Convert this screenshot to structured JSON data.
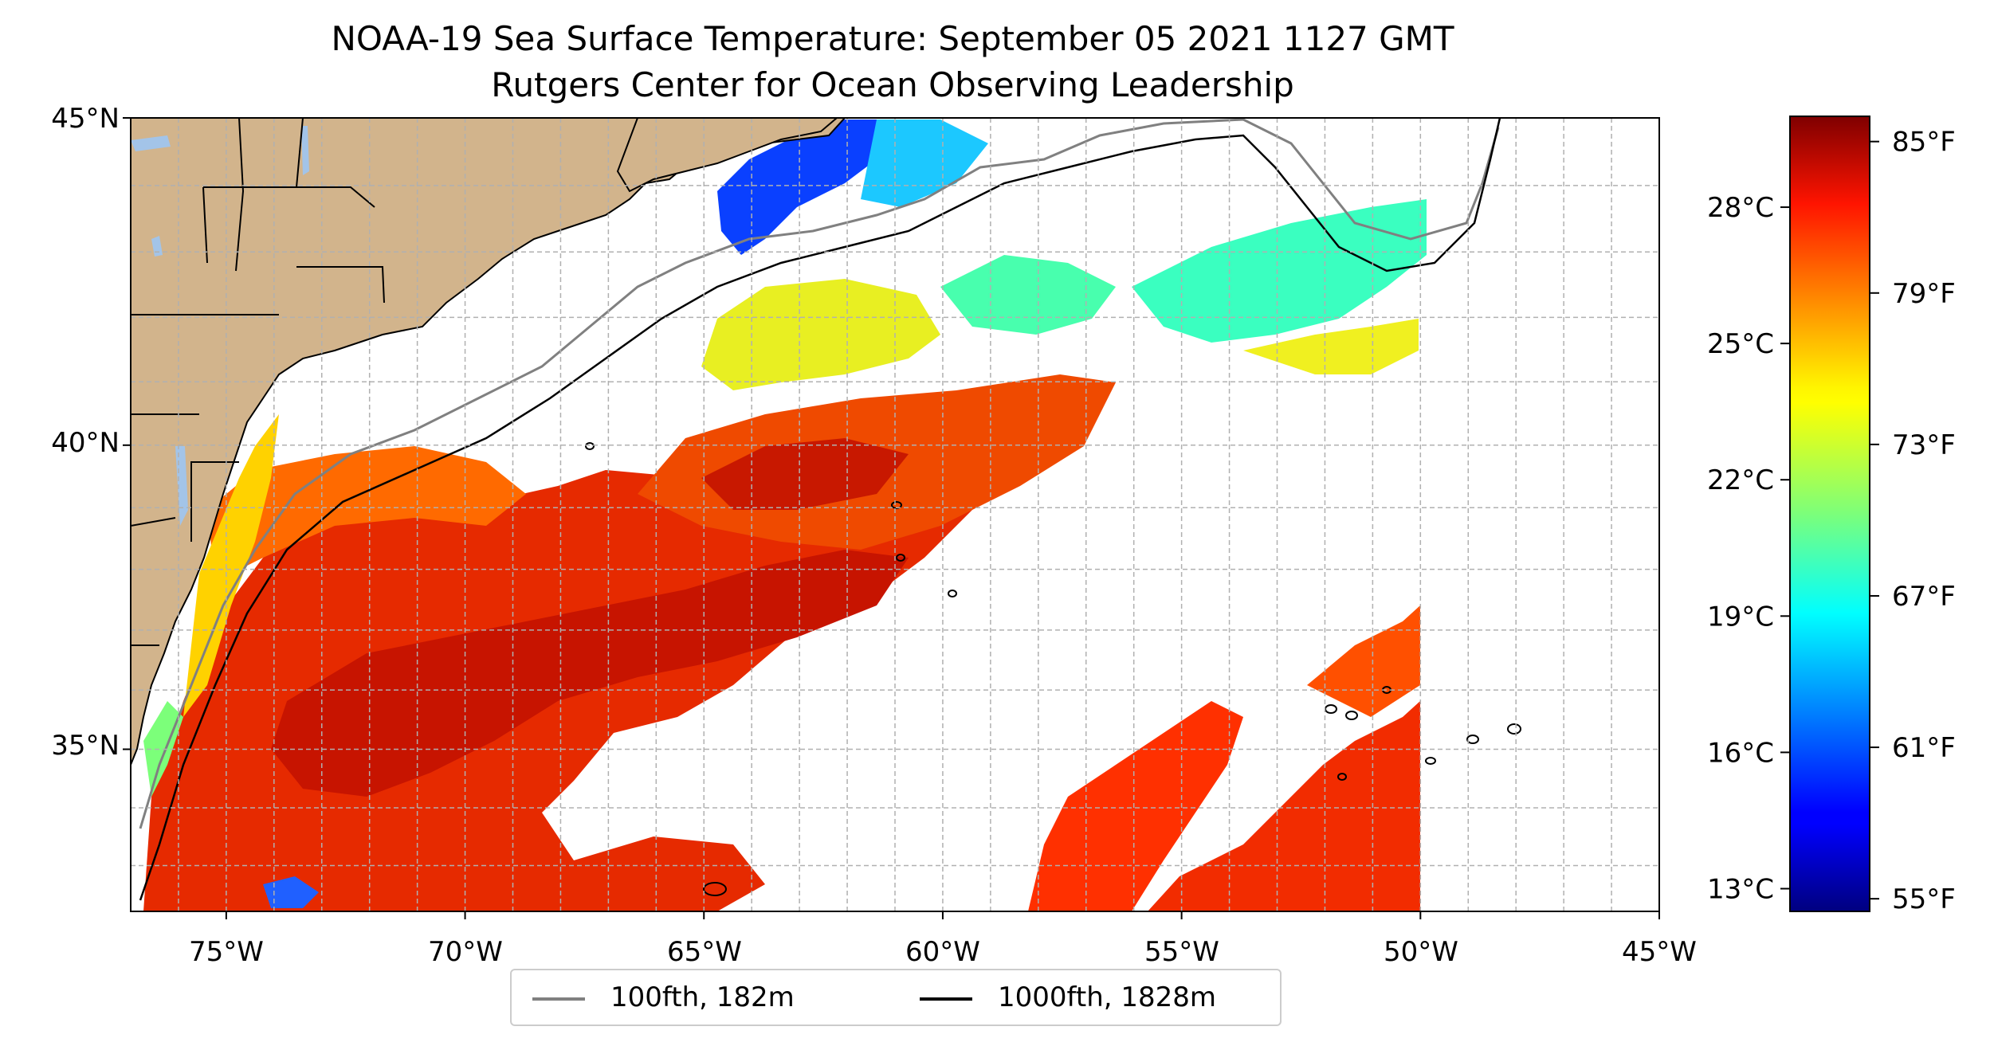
{
  "title": {
    "line1": "NOAA-19 Sea Surface Temperature: September 05 2021 1127 GMT",
    "line2": "Rutgers Center for Ocean Observing Leadership"
  },
  "map": {
    "lat_ticks": [
      "45°N",
      "40°N",
      "35°N"
    ],
    "lon_ticks": [
      "75°W",
      "70°W",
      "65°W",
      "60°W",
      "55°W",
      "50°W",
      "45°W"
    ],
    "extent": {
      "lon_min": -77,
      "lon_max": -45,
      "lat_min": 32.2,
      "lat_max": 45
    },
    "colors": {
      "land": "#d2b48c",
      "lakes": "#a3c4e8",
      "water_nodata": "#ffffff",
      "isobath_100fth": "#808080",
      "isobath_1000fth": "#000000",
      "grid": "#b0b0b0"
    }
  },
  "colorbar": {
    "celsius_labels": [
      "28°C",
      "25°C",
      "22°C",
      "19°C",
      "16°C",
      "13°C"
    ],
    "celsius_values": [
      28,
      25,
      22,
      19,
      16,
      13
    ],
    "fahrenheit_labels": [
      "85°F",
      "79°F",
      "73°F",
      "67°F",
      "61°F",
      "55°F"
    ],
    "fahrenheit_values": [
      85,
      79,
      73,
      67,
      61,
      55
    ],
    "range_f": [
      54.5,
      86
    ],
    "colormap": "jet"
  },
  "legend": {
    "items": [
      {
        "label": "100fth, 182m",
        "color": "#808080"
      },
      {
        "label": "1000fth, 1828m",
        "color": "#000000"
      }
    ]
  }
}
